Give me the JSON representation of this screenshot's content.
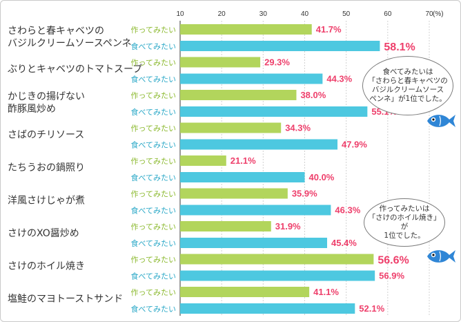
{
  "chart_data": {
    "type": "bar",
    "orientation": "horizontal",
    "axis_unit": "(%)",
    "xlim": [
      10,
      70
    ],
    "xticks": [
      10,
      20,
      30,
      40,
      50,
      60,
      70
    ],
    "grid": true,
    "categories": [
      "さわらと春キャベツの\nバジルクリームソースペンネ",
      "ぶりとキャベツのトマトスープ",
      "かじきの揚げない\n酢豚風炒め",
      "さばのチリソース",
      "たちうおの鍋照り",
      "洋風さけじゃが煮",
      "さけのXO醤炒め",
      "さけのホイル焼き",
      "塩鮭のマヨトーストサンド"
    ],
    "series": [
      {
        "name": "作ってみたい",
        "color": "#b2d55c",
        "values": [
          41.7,
          29.3,
          38.0,
          34.3,
          21.1,
          35.9,
          31.9,
          56.6,
          41.1
        ]
      },
      {
        "name": "食べてみたい",
        "color": "#4dc8e0",
        "values": [
          58.1,
          44.3,
          55.1,
          47.9,
          40.0,
          46.3,
          45.4,
          56.9,
          52.1
        ]
      }
    ],
    "value_labels": [
      [
        "41.7%",
        "58.1%"
      ],
      [
        "29.3%",
        "44.3%"
      ],
      [
        "38.0%",
        "55.1%"
      ],
      [
        "34.3%",
        "47.9%"
      ],
      [
        "21.1%",
        "40.0%"
      ],
      [
        "35.9%",
        "46.3%"
      ],
      [
        "31.9%",
        "45.4%"
      ],
      [
        "56.6%",
        "56.9%"
      ],
      [
        "41.1%",
        "52.1%"
      ]
    ],
    "highlighted": [
      [
        0,
        1
      ],
      [
        7,
        0
      ]
    ],
    "annotations": [
      "食べてみたいは\n「さわらと春キャベツの\nバジルクリームソース\nペンネ」が1位でした。",
      "作ってみたいは\n「さけのホイル焼き」が\n1位でした。"
    ]
  },
  "colors": {
    "value_text": "#ee3f6b",
    "make_label": "#8bb92e",
    "eat_label": "#2aa8c7",
    "grid": "#d0d0d0",
    "fish": "#2f86d6"
  },
  "icons": [
    "fish-icon"
  ]
}
